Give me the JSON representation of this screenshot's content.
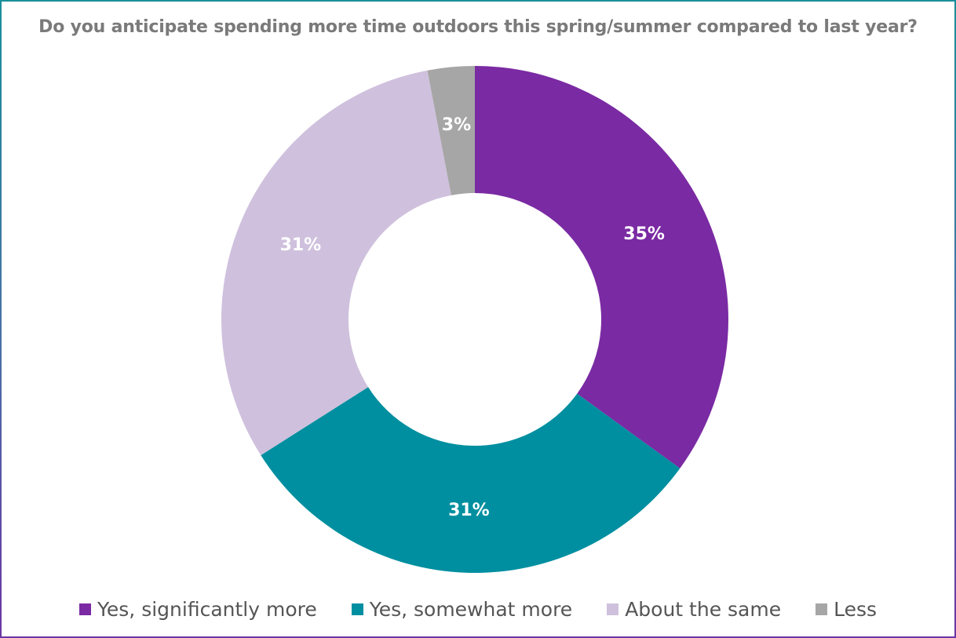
{
  "chart_data": {
    "type": "pie",
    "title": "Do you anticipate spending more time outdoors this spring/summer compared to last year?",
    "categories": [
      "Yes, significantly more",
      "Yes, somewhat more",
      "About the same",
      "Less"
    ],
    "values": [
      35,
      31,
      31,
      3
    ],
    "data_labels": [
      "35%",
      "31%",
      "31%",
      "3%"
    ],
    "colors": [
      "#7a2aa3",
      "#008fa0",
      "#cfc1dd",
      "#a6a6a6"
    ],
    "legend_position": "bottom",
    "style": "donut"
  }
}
